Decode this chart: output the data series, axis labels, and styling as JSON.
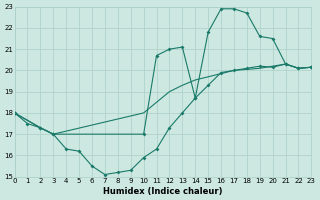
{
  "xlabel": "Humidex (Indice chaleur)",
  "xlim": [
    0,
    23
  ],
  "ylim": [
    15,
    23
  ],
  "xticks": [
    0,
    1,
    2,
    3,
    4,
    5,
    6,
    7,
    8,
    9,
    10,
    11,
    12,
    13,
    14,
    15,
    16,
    17,
    18,
    19,
    20,
    21,
    22,
    23
  ],
  "yticks": [
    15,
    16,
    17,
    18,
    19,
    20,
    21,
    22,
    23
  ],
  "bg_color": "#cce8e0",
  "grid_color": "#aacfc8",
  "line_color": "#1a7a6a",
  "cA_x": [
    0,
    1,
    2,
    3,
    4,
    5,
    6,
    7,
    8,
    9,
    10,
    11,
    12,
    13,
    14,
    15,
    16,
    17,
    18,
    19,
    20,
    21,
    22,
    23
  ],
  "cA_y": [
    18.0,
    17.5,
    17.3,
    17.0,
    16.3,
    16.2,
    15.5,
    15.1,
    15.2,
    15.3,
    15.9,
    16.3,
    17.3,
    18.0,
    18.7,
    19.3,
    19.9,
    20.0,
    20.1,
    20.2,
    20.15,
    20.3,
    20.1,
    20.15
  ],
  "cB_x": [
    0,
    2,
    3,
    10,
    11,
    12,
    13,
    14,
    15,
    16,
    17,
    18,
    19,
    20,
    21,
    22,
    23
  ],
  "cB_y": [
    18.0,
    17.3,
    17.0,
    17.0,
    20.7,
    21.0,
    21.1,
    18.7,
    21.8,
    22.9,
    22.9,
    22.7,
    21.6,
    21.5,
    20.3,
    20.1,
    20.15
  ],
  "cC_x": [
    0,
    2,
    3,
    10,
    11,
    12,
    13,
    14,
    15,
    16,
    17,
    18,
    19,
    20,
    21,
    22,
    23
  ],
  "cC_y": [
    18.0,
    17.3,
    17.0,
    18.0,
    18.5,
    19.0,
    19.3,
    19.55,
    19.7,
    19.85,
    20.0,
    20.05,
    20.1,
    20.2,
    20.3,
    20.1,
    20.15
  ]
}
